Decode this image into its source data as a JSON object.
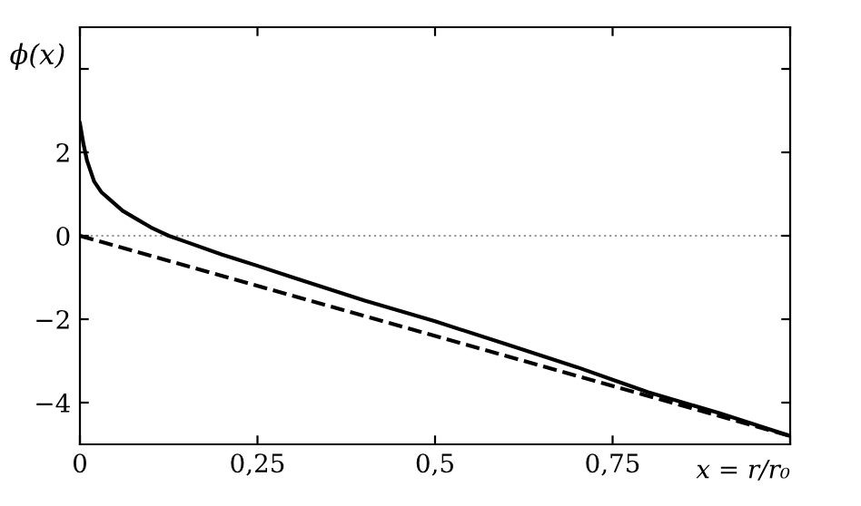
{
  "chart_data": {
    "type": "line",
    "xlabel": "x = r/r₀",
    "ylabel": "ϕ(x)",
    "series": [
      {
        "color": "#000000",
        "line_style": "solid",
        "x": [
          0,
          0.005,
          0.01,
          0.02,
          0.03,
          0.04,
          0.06,
          0.08,
          0.1,
          0.125,
          0.15,
          0.2,
          0.25,
          0.3,
          0.4,
          0.5,
          0.6,
          0.7,
          0.75,
          0.8,
          0.9,
          1.0
        ],
        "values": [
          2.7,
          2.2,
          1.8,
          1.3,
          1.05,
          0.9,
          0.6,
          0.4,
          0.2,
          0.0,
          -0.15,
          -0.45,
          -0.72,
          -1.0,
          -1.55,
          -2.05,
          -2.6,
          -3.15,
          -3.45,
          -3.75,
          -4.25,
          -4.8
        ]
      },
      {
        "color": "#000000",
        "line_style": "dashed",
        "x": [
          0,
          1.0
        ],
        "values": [
          0,
          -4.8
        ]
      }
    ],
    "ref_lines": [
      {
        "axis": "y",
        "value": 0,
        "color": "#999999",
        "line_style": "dotted"
      }
    ],
    "xlim": [
      0,
      1
    ],
    "ylim": [
      -5,
      5
    ],
    "xticks": [
      0,
      {
        "value": 0.25,
        "label": "0,25"
      },
      {
        "value": 0.5,
        "label": "0,5"
      },
      {
        "value": 0.75,
        "label": "0,75"
      },
      {
        "value": 1,
        "label": null
      }
    ],
    "yticks": [
      {
        "value": -4,
        "label": "−4"
      },
      {
        "value": -2,
        "label": "−2"
      },
      0,
      2,
      {
        "value": 4,
        "label": null
      }
    ],
    "grid": false,
    "legend": false
  }
}
